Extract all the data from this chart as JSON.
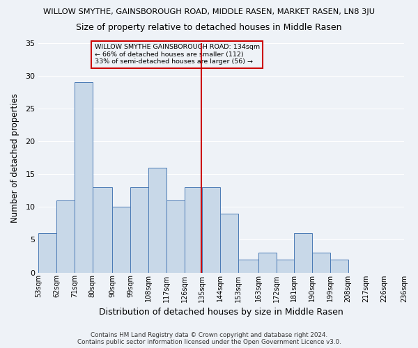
{
  "title": "WILLOW SMYTHE, GAINSBOROUGH ROAD, MIDDLE RASEN, MARKET RASEN, LN8 3JU",
  "subtitle": "Size of property relative to detached houses in Middle Rasen",
  "xlabel": "Distribution of detached houses by size in Middle Rasen",
  "ylabel": "Number of detached properties",
  "categories": [
    "53sqm",
    "62sqm",
    "71sqm",
    "80sqm",
    "90sqm",
    "99sqm",
    "108sqm",
    "117sqm",
    "126sqm",
    "135sqm",
    "144sqm",
    "153sqm",
    "163sqm",
    "172sqm",
    "181sqm",
    "190sqm",
    "199sqm",
    "208sqm",
    "217sqm",
    "226sqm",
    "236sqm"
  ],
  "bar_heights": [
    6,
    11,
    29,
    13,
    10,
    13,
    16,
    11,
    13,
    13,
    9,
    2,
    3,
    2,
    6,
    3,
    2,
    0,
    0,
    0
  ],
  "bin_edges": [
    53,
    62,
    71,
    80,
    90,
    99,
    108,
    117,
    126,
    135,
    144,
    153,
    163,
    172,
    181,
    190,
    199,
    208,
    217,
    226,
    236
  ],
  "bar_color": "#c8d8e8",
  "bar_edge_color": "#4a7ab5",
  "vline_x": 134.5,
  "vline_color": "#cc0000",
  "annotation_text": "WILLOW SMYTHE GAINSBOROUGH ROAD: 134sqm\n← 66% of detached houses are smaller (112)\n33% of semi-detached houses are larger (56) →",
  "annotation_box_color": "#cc0000",
  "ylim": [
    0,
    35
  ],
  "yticks": [
    0,
    5,
    10,
    15,
    20,
    25,
    30,
    35
  ],
  "bg_color": "#eef2f7",
  "grid_color": "#ffffff",
  "footer1": "Contains HM Land Registry data © Crown copyright and database right 2024.",
  "footer2": "Contains public sector information licensed under the Open Government Licence v3.0.",
  "figsize": [
    6.0,
    5.0
  ],
  "dpi": 100
}
